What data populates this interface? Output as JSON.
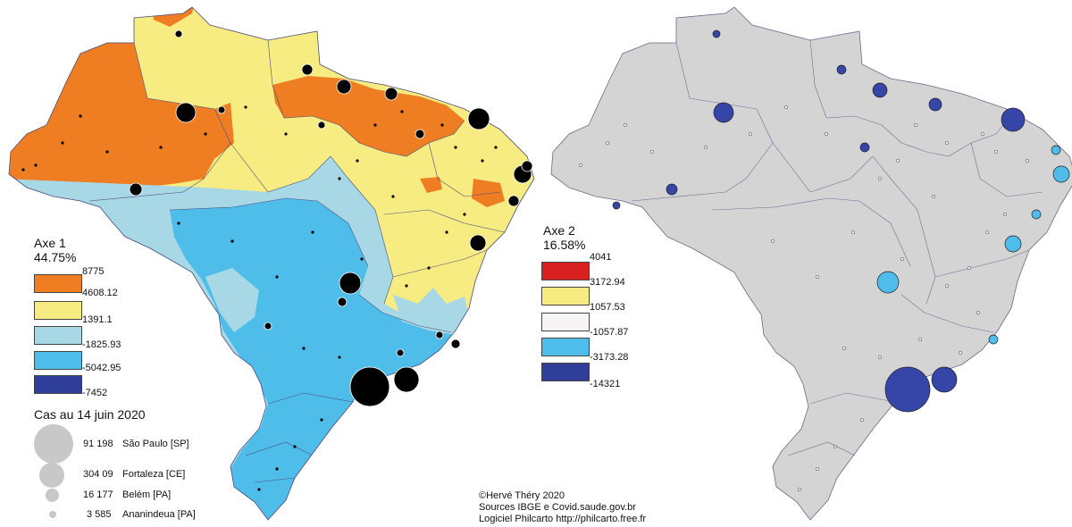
{
  "colors": {
    "orange": "#ef7d22",
    "yellow": "#f7ec81",
    "light_blue": "#a8d8e6",
    "blue": "#4fbdea",
    "dark_blue": "#2f3f99",
    "red": "#d7201f",
    "white_class": "#f6f4f4",
    "grey_land": "#d4d4d4",
    "bubble_grey": "#c8c8c8",
    "ocean": "#ffffff"
  },
  "map_left": {
    "legend": {
      "title_line1": "Axe 1",
      "title_line2": "44.75%",
      "breaks": [
        "8775",
        "4608.12",
        "1391.1",
        "-1825.93",
        "-5042.95",
        "-7452"
      ],
      "class_colors": [
        "#ef7d22",
        "#f7ec81",
        "#a8d8e6",
        "#4fbdea",
        "#2f3f99"
      ]
    },
    "cases": {
      "title": "Cas au 14 juin 2020",
      "items": [
        {
          "value": "91 198",
          "place": "São Paulo [SP]"
        },
        {
          "value": "304 09",
          "place": "Fortaleza [CE]"
        },
        {
          "value": "16 177",
          "place": "Belém [PA]"
        },
        {
          "value": "3 585",
          "place": "Ananindeua [PA]"
        }
      ]
    }
  },
  "map_right": {
    "legend": {
      "title_line1": "Axe 2",
      "title_line2": "16.58%",
      "breaks": [
        "4041",
        "3172.94",
        "1057.53",
        "-1057.87",
        "-3173.28",
        "-14321"
      ],
      "class_colors": [
        "#d7201f",
        "#f7ec81",
        "#f6f4f4",
        "#4fbdea",
        "#2f3f99"
      ]
    }
  },
  "credits": {
    "line1": "©Hervé Théry 2020",
    "line2": "Sources IBGE e Covid.saude.gov.br",
    "line3": "Logiciel Philcarto http://philcarto.free.fr"
  }
}
